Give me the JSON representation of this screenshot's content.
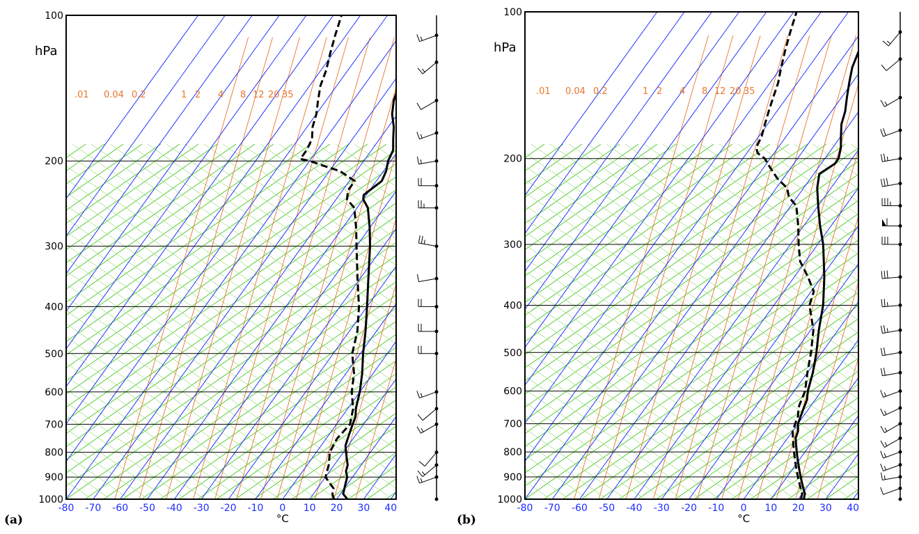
{
  "chart_data": [
    {
      "type": "skew-t log-p",
      "panel_label": "(a)",
      "ylabel": "hPa",
      "xlabel": "°C",
      "y_scale": "log",
      "pressure_ticks": [
        100,
        200,
        300,
        400,
        500,
        600,
        700,
        800,
        900,
        1000
      ],
      "temperature_ticks": [
        -80,
        -70,
        -60,
        -50,
        -40,
        -30,
        -20,
        -10,
        0,
        10,
        20,
        30,
        40
      ],
      "mixing_ratio_labels": [
        ".01",
        "0.04",
        "0.2",
        "1",
        "2",
        "4",
        "8",
        "12",
        "20",
        "35"
      ],
      "ylim": [
        1000,
        100
      ],
      "xlim": [
        -80,
        42
      ],
      "series": [
        {
          "kind": "temperature",
          "points": [
            [
              1000,
              24
            ],
            [
              975,
              21
            ],
            [
              950,
              20
            ],
            [
              925,
              19
            ],
            [
              900,
              18
            ],
            [
              875,
              16
            ],
            [
              850,
              15
            ],
            [
              825,
              13
            ],
            [
              800,
              11
            ],
            [
              775,
              9
            ],
            [
              750,
              8
            ],
            [
              725,
              7
            ],
            [
              700,
              6
            ],
            [
              675,
              5
            ],
            [
              650,
              3
            ],
            [
              600,
              0
            ],
            [
              550,
              -4
            ],
            [
              500,
              -9
            ],
            [
              450,
              -14
            ],
            [
              400,
              -20
            ],
            [
              350,
              -27
            ],
            [
              300,
              -35
            ],
            [
              275,
              -40
            ],
            [
              250,
              -46
            ],
            [
              240,
              -50
            ],
            [
              235,
              -51
            ],
            [
              230,
              -50
            ],
            [
              225,
              -49
            ],
            [
              220,
              -48
            ],
            [
              210,
              -49
            ],
            [
              200,
              -51
            ],
            [
              190,
              -52
            ],
            [
              180,
              -55
            ],
            [
              170,
              -58
            ],
            [
              160,
              -62
            ],
            [
              150,
              -65
            ],
            [
              140,
              -67
            ],
            [
              130,
              -71
            ],
            [
              120,
              -73
            ],
            [
              110,
              -75
            ],
            [
              100,
              -79
            ]
          ]
        },
        {
          "kind": "dewpoint",
          "points": [
            [
              1000,
              19
            ],
            [
              975,
              17
            ],
            [
              950,
              16
            ],
            [
              925,
              13
            ],
            [
              900,
              10
            ],
            [
              875,
              9
            ],
            [
              850,
              8
            ],
            [
              800,
              5
            ],
            [
              750,
              4
            ],
            [
              700,
              5
            ],
            [
              650,
              2
            ],
            [
              600,
              -3
            ],
            [
              550,
              -7
            ],
            [
              500,
              -13
            ],
            [
              450,
              -17
            ],
            [
              400,
              -23
            ],
            [
              350,
              -31
            ],
            [
              300,
              -40
            ],
            [
              275,
              -45
            ],
            [
              250,
              -51
            ],
            [
              240,
              -56
            ],
            [
              230,
              -58
            ],
            [
              220,
              -58
            ],
            [
              215,
              -62
            ],
            [
              210,
              -66
            ],
            [
              205,
              -73
            ],
            [
              200,
              -80
            ],
            [
              198,
              -84
            ],
            [
              190,
              -84
            ],
            [
              180,
              -85
            ],
            [
              170,
              -88
            ],
            [
              160,
              -90
            ],
            [
              150,
              -93
            ],
            [
              140,
              -96
            ],
            [
              130,
              -98
            ],
            [
              120,
              -101
            ],
            [
              110,
              -104
            ],
            [
              100,
              -107
            ]
          ]
        }
      ],
      "wind_barbs": [
        {
          "p": 1000,
          "speed_kt": 0,
          "dir_deg": 0
        },
        {
          "p": 900,
          "speed_kt": 15,
          "dir_deg": 250
        },
        {
          "p": 850,
          "speed_kt": 15,
          "dir_deg": 230
        },
        {
          "p": 800,
          "speed_kt": 10,
          "dir_deg": 220
        },
        {
          "p": 700,
          "speed_kt": 15,
          "dir_deg": 240
        },
        {
          "p": 650,
          "speed_kt": 10,
          "dir_deg": 230
        },
        {
          "p": 600,
          "speed_kt": 15,
          "dir_deg": 250
        },
        {
          "p": 500,
          "speed_kt": 20,
          "dir_deg": 270
        },
        {
          "p": 450,
          "speed_kt": 20,
          "dir_deg": 270
        },
        {
          "p": 400,
          "speed_kt": 20,
          "dir_deg": 270
        },
        {
          "p": 350,
          "speed_kt": 10,
          "dir_deg": 260
        },
        {
          "p": 300,
          "speed_kt": 25,
          "dir_deg": 280
        },
        {
          "p": 250,
          "speed_kt": 25,
          "dir_deg": 270
        },
        {
          "p": 225,
          "speed_kt": 20,
          "dir_deg": 270
        },
        {
          "p": 200,
          "speed_kt": 15,
          "dir_deg": 260
        },
        {
          "p": 175,
          "speed_kt": 15,
          "dir_deg": 250
        },
        {
          "p": 150,
          "speed_kt": 10,
          "dir_deg": 240
        },
        {
          "p": 125,
          "speed_kt": 15,
          "dir_deg": 230
        },
        {
          "p": 110,
          "speed_kt": 15,
          "dir_deg": 250
        }
      ]
    },
    {
      "type": "skew-t log-p",
      "panel_label": "(b)",
      "ylabel": "hPa",
      "xlabel": "°C",
      "y_scale": "log",
      "pressure_ticks": [
        100,
        200,
        300,
        400,
        500,
        600,
        700,
        800,
        900,
        1000
      ],
      "temperature_ticks": [
        -80,
        -70,
        -60,
        -50,
        -40,
        -30,
        -20,
        -10,
        0,
        10,
        20,
        30,
        40
      ],
      "mixing_ratio_labels": [
        ".01",
        "0.04",
        "0.2",
        "1",
        "2",
        "4",
        "8",
        "12",
        "20",
        "35"
      ],
      "ylim": [
        1000,
        100
      ],
      "xlim": [
        -80,
        42
      ],
      "series": [
        {
          "kind": "temperature",
          "points": [
            [
              1000,
              22
            ],
            [
              975,
              21
            ],
            [
              950,
              19
            ],
            [
              925,
              17
            ],
            [
              900,
              15
            ],
            [
              875,
              13
            ],
            [
              850,
              11
            ],
            [
              825,
              9
            ],
            [
              800,
              7
            ],
            [
              775,
              5
            ],
            [
              750,
              3
            ],
            [
              725,
              2
            ],
            [
              700,
              0
            ],
            [
              675,
              -1
            ],
            [
              650,
              -2
            ],
            [
              625,
              -3
            ],
            [
              600,
              -5
            ],
            [
              550,
              -8
            ],
            [
              500,
              -12
            ],
            [
              450,
              -17
            ],
            [
              400,
              -22
            ],
            [
              350,
              -29
            ],
            [
              300,
              -38
            ],
            [
              275,
              -44
            ],
            [
              250,
              -50
            ],
            [
              230,
              -55
            ],
            [
              215,
              -58
            ],
            [
              205,
              -55
            ],
            [
              200,
              -55
            ],
            [
              190,
              -57
            ],
            [
              180,
              -60
            ],
            [
              170,
              -63
            ],
            [
              160,
              -65
            ],
            [
              150,
              -68
            ],
            [
              140,
              -71
            ],
            [
              130,
              -74
            ],
            [
              120,
              -76
            ],
            [
              110,
              -79
            ],
            [
              100,
              -82
            ]
          ]
        },
        {
          "kind": "dewpoint",
          "points": [
            [
              1000,
              21
            ],
            [
              975,
              20
            ],
            [
              950,
              18
            ],
            [
              925,
              16
            ],
            [
              900,
              14
            ],
            [
              875,
              12
            ],
            [
              850,
              10
            ],
            [
              825,
              8
            ],
            [
              800,
              6
            ],
            [
              775,
              4
            ],
            [
              750,
              2
            ],
            [
              725,
              0
            ],
            [
              700,
              -1
            ],
            [
              675,
              -2
            ],
            [
              650,
              -4
            ],
            [
              625,
              -5
            ],
            [
              600,
              -6
            ],
            [
              550,
              -10
            ],
            [
              500,
              -14
            ],
            [
              450,
              -19
            ],
            [
              400,
              -27
            ],
            [
              375,
              -29
            ],
            [
              350,
              -35
            ],
            [
              325,
              -42
            ],
            [
              300,
              -47
            ],
            [
              275,
              -52
            ],
            [
              250,
              -58
            ],
            [
              240,
              -63
            ],
            [
              230,
              -66
            ],
            [
              220,
              -72
            ],
            [
              210,
              -77
            ],
            [
              200,
              -82
            ],
            [
              195,
              -86
            ],
            [
              190,
              -88
            ],
            [
              180,
              -89
            ],
            [
              170,
              -91
            ],
            [
              160,
              -93
            ],
            [
              150,
              -95
            ],
            [
              140,
              -97
            ],
            [
              130,
              -100
            ],
            [
              120,
              -103
            ],
            [
              110,
              -106
            ],
            [
              100,
              -109
            ]
          ]
        }
      ],
      "wind_barbs": [
        {
          "p": 1000,
          "speed_kt": 0,
          "dir_deg": 0
        },
        {
          "p": 950,
          "speed_kt": 10,
          "dir_deg": 250
        },
        {
          "p": 900,
          "speed_kt": 15,
          "dir_deg": 260
        },
        {
          "p": 850,
          "speed_kt": 15,
          "dir_deg": 250
        },
        {
          "p": 800,
          "speed_kt": 15,
          "dir_deg": 250
        },
        {
          "p": 750,
          "speed_kt": 15,
          "dir_deg": 240
        },
        {
          "p": 700,
          "speed_kt": 15,
          "dir_deg": 240
        },
        {
          "p": 650,
          "speed_kt": 15,
          "dir_deg": 245
        },
        {
          "p": 600,
          "speed_kt": 15,
          "dir_deg": 250
        },
        {
          "p": 550,
          "speed_kt": 20,
          "dir_deg": 260
        },
        {
          "p": 500,
          "speed_kt": 20,
          "dir_deg": 260
        },
        {
          "p": 450,
          "speed_kt": 25,
          "dir_deg": 260
        },
        {
          "p": 400,
          "speed_kt": 25,
          "dir_deg": 265
        },
        {
          "p": 350,
          "speed_kt": 30,
          "dir_deg": 265
        },
        {
          "p": 300,
          "speed_kt": 30,
          "dir_deg": 270
        },
        {
          "p": 275,
          "speed_kt": 60,
          "dir_deg": 270
        },
        {
          "p": 250,
          "speed_kt": 35,
          "dir_deg": 270
        },
        {
          "p": 225,
          "speed_kt": 30,
          "dir_deg": 260
        },
        {
          "p": 200,
          "speed_kt": 25,
          "dir_deg": 260
        },
        {
          "p": 175,
          "speed_kt": 20,
          "dir_deg": 250
        },
        {
          "p": 150,
          "speed_kt": 15,
          "dir_deg": 240
        },
        {
          "p": 125,
          "speed_kt": 10,
          "dir_deg": 230
        },
        {
          "p": 110,
          "speed_kt": 15,
          "dir_deg": 220
        }
      ]
    }
  ]
}
